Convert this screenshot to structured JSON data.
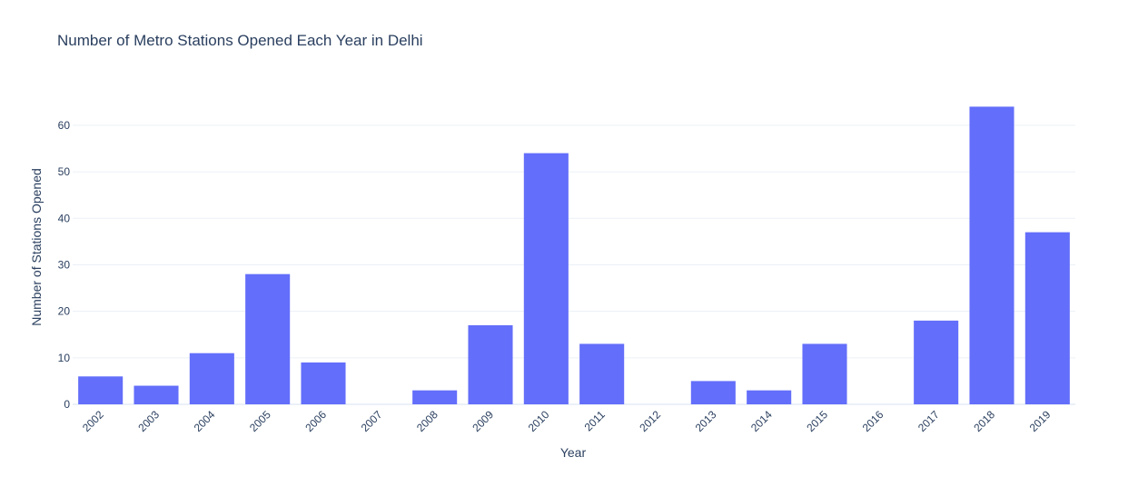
{
  "chart_data": {
    "type": "bar",
    "title": "Number of Metro Stations Opened Each Year in Delhi",
    "xlabel": "Year",
    "ylabel": "Number of Stations Opened",
    "categories": [
      "2002",
      "2003",
      "2004",
      "2005",
      "2006",
      "2007",
      "2008",
      "2009",
      "2010",
      "2011",
      "2012",
      "2013",
      "2014",
      "2015",
      "2016",
      "2017",
      "2018",
      "2019"
    ],
    "values": [
      6,
      4,
      11,
      28,
      9,
      0,
      3,
      17,
      54,
      13,
      0,
      5,
      3,
      13,
      0,
      18,
      64,
      37
    ],
    "ylim": [
      0,
      67.4
    ],
    "yticks": [
      0,
      10,
      20,
      30,
      40,
      50,
      60
    ],
    "grid": true,
    "bar_color": "#636efa"
  }
}
